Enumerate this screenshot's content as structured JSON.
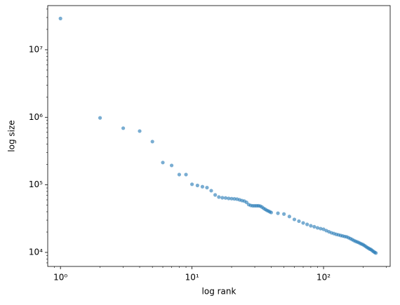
{
  "chart_data": {
    "type": "scatter",
    "xlabel": "log rank",
    "ylabel": "log size",
    "xscale": "log",
    "yscale": "log",
    "color": "#1f77b4",
    "alpha": 0.6,
    "xlim": [
      0.8,
      321
    ],
    "ylim": [
      6200,
      45000000
    ],
    "xticks": [
      {
        "value": 1,
        "label": "10⁰"
      },
      {
        "value": 10,
        "label": "10¹"
      },
      {
        "value": 100,
        "label": "10²"
      }
    ],
    "yticks": [
      {
        "value": 10000,
        "label": "10⁴"
      },
      {
        "value": 100000,
        "label": "10⁵"
      },
      {
        "value": 1000000,
        "label": "10⁶"
      },
      {
        "value": 10000000,
        "label": "10⁷"
      }
    ],
    "xminorticks": [
      0.9,
      2,
      3,
      4,
      5,
      6,
      7,
      8,
      9,
      20,
      30,
      40,
      50,
      60,
      70,
      80,
      90,
      200,
      300
    ],
    "yminorticks": [
      7000,
      8000,
      9000,
      20000,
      30000,
      40000,
      50000,
      60000,
      70000,
      80000,
      90000,
      200000,
      300000,
      400000,
      500000,
      600000,
      700000,
      800000,
      900000,
      2000000,
      3000000,
      4000000,
      5000000,
      6000000,
      7000000,
      8000000,
      9000000,
      20000000,
      30000000,
      40000000
    ],
    "x": [
      1,
      2,
      3,
      4,
      5,
      6,
      7,
      8,
      9,
      10,
      11,
      12,
      13,
      14,
      15,
      16,
      17,
      18,
      19,
      20,
      21,
      22,
      23,
      24,
      25,
      26,
      27,
      28,
      29,
      30,
      31,
      32,
      33,
      34,
      35,
      36,
      37,
      38,
      39,
      40,
      45,
      50,
      55,
      60,
      65,
      70,
      75,
      80,
      85,
      90,
      95,
      100,
      105,
      110,
      115,
      120,
      125,
      130,
      135,
      140,
      145,
      150,
      155,
      160,
      165,
      170,
      175,
      180,
      185,
      190,
      195,
      200,
      205,
      210,
      215,
      220,
      225,
      230,
      235,
      240,
      245,
      250
    ],
    "values": [
      29000000,
      980000,
      690000,
      625000,
      437000,
      214000,
      194000,
      142000,
      142000,
      102000,
      98000,
      94000,
      91000,
      82000,
      71000,
      66000,
      64500,
      64000,
      63000,
      62500,
      62000,
      61500,
      60000,
      58500,
      57500,
      55000,
      51000,
      49500,
      49000,
      49000,
      49000,
      49000,
      48500,
      47000,
      45000,
      43500,
      42000,
      41000,
      40000,
      39000,
      38000,
      37000,
      34000,
      30800,
      29000,
      27300,
      26000,
      24800,
      24000,
      23100,
      22500,
      22000,
      21000,
      20200,
      19500,
      19000,
      18500,
      18200,
      17800,
      17500,
      17200,
      17000,
      16500,
      16000,
      15500,
      15000,
      14600,
      14300,
      14000,
      13600,
      13300,
      13000,
      12600,
      12200,
      11800,
      11500,
      11200,
      11000,
      10600,
      10300,
      10000,
      9800
    ]
  }
}
